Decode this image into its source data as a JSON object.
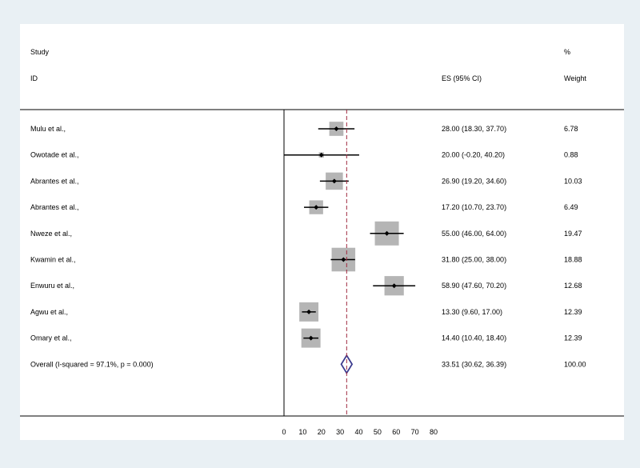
{
  "chart_data": {
    "type": "forest",
    "header": {
      "study_line1": "Study",
      "study_line2": "ID",
      "es_label": "ES (95% CI)",
      "weight_line1": "%",
      "weight_line2": "Weight"
    },
    "studies": [
      {
        "label": "Mulu et al.,",
        "es": 28.0,
        "lo": 18.3,
        "hi": 37.7,
        "es_text": "28.00 (18.30, 37.70)",
        "weight": 6.78,
        "weight_text": "6.78"
      },
      {
        "label": "Owotade  et al.,",
        "es": 20.0,
        "lo": -0.2,
        "hi": 40.2,
        "es_text": "20.00 (-0.20, 40.20)",
        "weight": 0.88,
        "weight_text": "0.88"
      },
      {
        "label": "Abrantes et al.,",
        "es": 26.9,
        "lo": 19.2,
        "hi": 34.6,
        "es_text": "26.90 (19.20, 34.60)",
        "weight": 10.03,
        "weight_text": "10.03"
      },
      {
        "label": "Abrantes et al.,",
        "es": 17.2,
        "lo": 10.7,
        "hi": 23.7,
        "es_text": "17.20 (10.70, 23.70)",
        "weight": 6.49,
        "weight_text": "6.49"
      },
      {
        "label": "Nweze et al.,",
        "es": 55.0,
        "lo": 46.0,
        "hi": 64.0,
        "es_text": "55.00 (46.00, 64.00)",
        "weight": 19.47,
        "weight_text": "19.47"
      },
      {
        "label": "Kwamin et al.,",
        "es": 31.8,
        "lo": 25.0,
        "hi": 38.0,
        "es_text": "31.80 (25.00, 38.00)",
        "weight": 18.88,
        "weight_text": "18.88"
      },
      {
        "label": "Enwuru  et al.,",
        "es": 58.9,
        "lo": 47.6,
        "hi": 70.2,
        "es_text": "58.90 (47.60, 70.20)",
        "weight": 12.68,
        "weight_text": "12.68"
      },
      {
        "label": "Agwu et al.,",
        "es": 13.3,
        "lo": 9.6,
        "hi": 17.0,
        "es_text": "13.30 (9.60, 17.00)",
        "weight": 12.39,
        "weight_text": "12.39"
      },
      {
        "label": "Omary et al.,",
        "es": 14.4,
        "lo": 10.4,
        "hi": 18.4,
        "es_text": "14.40 (10.40, 18.40)",
        "weight": 12.39,
        "weight_text": "12.39"
      }
    ],
    "overall": {
      "label": "Overall  (I-squared = 97.1%, p = 0.000)",
      "es": 33.51,
      "lo": 30.62,
      "hi": 36.39,
      "es_text": "33.51 (30.62, 36.39)",
      "weight_text": "100.00"
    },
    "x_ticks": [
      0,
      10,
      20,
      30,
      40,
      50,
      60,
      70,
      80
    ],
    "xlim": [
      0,
      80
    ],
    "colors": {
      "box": "#b5b5b5",
      "ci_line": "#000000",
      "overall_diamond": "#3b3b8f",
      "overall_line": "#a0293f",
      "panel": "#ffffff",
      "outer": "#e9f0f4"
    }
  }
}
